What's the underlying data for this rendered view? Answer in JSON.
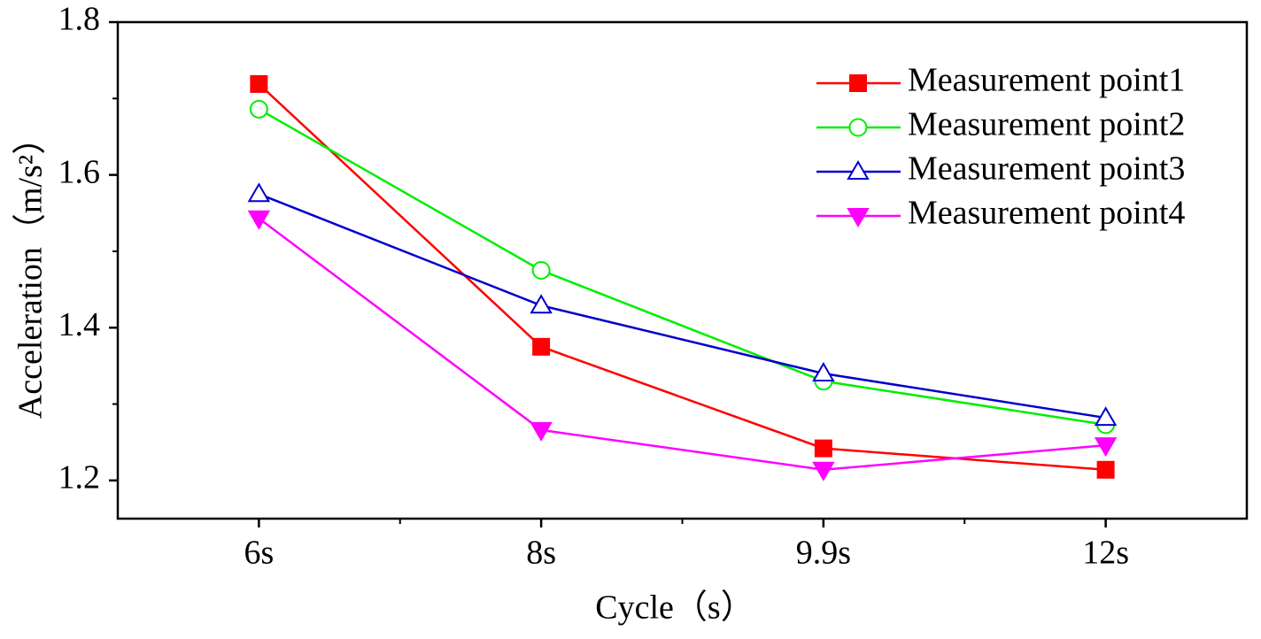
{
  "chart_data": {
    "type": "line",
    "x_label": "Cycle（s）",
    "y_label": "Acceleration（m/s²）",
    "categories": [
      "6s",
      "8s",
      "9.9s",
      "12s"
    ],
    "series": [
      {
        "name": "Measurement point1",
        "color": "#ff0000",
        "marker": "square",
        "filled": true,
        "values": [
          1.719,
          1.375,
          1.242,
          1.214
        ]
      },
      {
        "name": "Measurement point2",
        "color": "#00ee00",
        "marker": "circle",
        "filled": false,
        "values": [
          1.686,
          1.475,
          1.33,
          1.273
        ]
      },
      {
        "name": "Measurement point3",
        "color": "#0000cc",
        "marker": "triangle-up",
        "filled": false,
        "values": [
          1.575,
          1.429,
          1.34,
          1.282
        ]
      },
      {
        "name": "Measurement point4",
        "color": "#ff00ff",
        "marker": "triangle-down",
        "filled": true,
        "values": [
          1.543,
          1.266,
          1.214,
          1.246
        ]
      }
    ],
    "ylim": [
      1.15,
      1.8
    ],
    "yticks": [
      1.2,
      1.4,
      1.6,
      1.8
    ],
    "legend": "upper right",
    "grid": false
  }
}
